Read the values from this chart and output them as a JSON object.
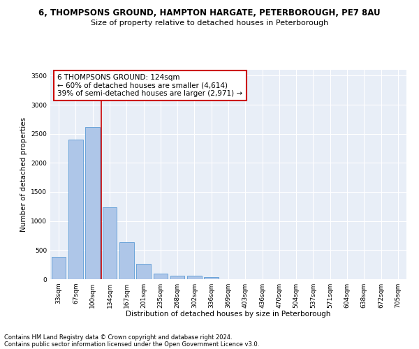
{
  "title_line1": "6, THOMPSONS GROUND, HAMPTON HARGATE, PETERBOROUGH, PE7 8AU",
  "title_line2": "Size of property relative to detached houses in Peterborough",
  "xlabel": "Distribution of detached houses by size in Peterborough",
  "ylabel": "Number of detached properties",
  "categories": [
    "33sqm",
    "67sqm",
    "100sqm",
    "134sqm",
    "167sqm",
    "201sqm",
    "235sqm",
    "268sqm",
    "302sqm",
    "336sqm",
    "369sqm",
    "403sqm",
    "436sqm",
    "470sqm",
    "504sqm",
    "537sqm",
    "571sqm",
    "604sqm",
    "638sqm",
    "672sqm",
    "705sqm"
  ],
  "values": [
    390,
    2400,
    2620,
    1240,
    640,
    260,
    95,
    60,
    55,
    40,
    0,
    0,
    0,
    0,
    0,
    0,
    0,
    0,
    0,
    0,
    0
  ],
  "bar_color": "#aec6e8",
  "bar_edge_color": "#5b9bd5",
  "vline_color": "#cc0000",
  "annotation_text": "6 THOMPSONS GROUND: 124sqm\n← 60% of detached houses are smaller (4,614)\n39% of semi-detached houses are larger (2,971) →",
  "annotation_box_color": "#ffffff",
  "annotation_box_edge_color": "#cc0000",
  "ylim": [
    0,
    3600
  ],
  "yticks": [
    0,
    500,
    1000,
    1500,
    2000,
    2500,
    3000,
    3500
  ],
  "background_color": "#e8eef7",
  "grid_color": "#ffffff",
  "footer_line1": "Contains HM Land Registry data © Crown copyright and database right 2024.",
  "footer_line2": "Contains public sector information licensed under the Open Government Licence v3.0.",
  "title_fontsize": 8.5,
  "subtitle_fontsize": 8,
  "axis_label_fontsize": 7.5,
  "tick_fontsize": 6.5,
  "annotation_fontsize": 7.5,
  "footer_fontsize": 6
}
